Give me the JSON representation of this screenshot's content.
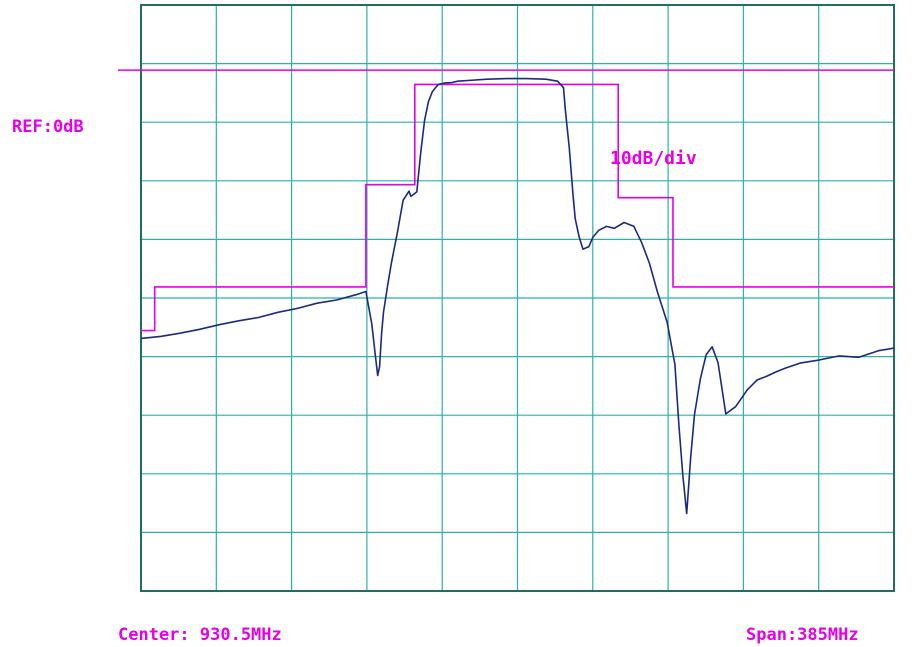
{
  "labels": {
    "ref": "REF:0dB",
    "scale": "10dB/div",
    "center": "Center: 930.5MHz",
    "span": "Span:385MHz"
  },
  "colors": {
    "grid": "#2ab3a8",
    "frame": "#1f6f60",
    "trace": "#1a2a80",
    "mask": "#e600e6",
    "text": "#e600e6"
  },
  "chart_data": {
    "type": "line",
    "title": "",
    "xlabel": "",
    "ylabel": "",
    "center_mhz": 930.5,
    "span_mhz": 385,
    "xlim": [
      738.0,
      1123.0
    ],
    "ylim": [
      -80,
      10
    ],
    "ref_level_db": 0,
    "db_per_div": 10,
    "grid": true,
    "series": [
      {
        "kind": "response",
        "x": [
          738.0,
          748.0,
          758.0,
          768.0,
          778.0,
          788.0,
          798.0,
          808.0,
          818.0,
          828.0,
          838.0,
          848.0,
          853.0,
          856.0,
          858.0,
          859.0,
          860.0,
          861.0,
          862.0,
          864.0,
          866.0,
          869.0,
          872.0,
          875.0,
          876.0,
          879.0,
          881.0,
          883.0,
          885.0,
          887.0,
          890.0,
          893.0,
          897.0,
          900.0,
          905.0,
          915.0,
          925.0,
          935.0,
          945.0,
          951.0,
          954.0,
          955.0,
          957.0,
          959.0,
          960.0,
          962.0,
          964.0,
          967.0,
          969.0,
          972.0,
          976.0,
          980.0,
          985.0,
          990.0,
          994.0,
          998.0,
          1002.0,
          1007.0,
          1011.0,
          1013.0,
          1015.0,
          1017.0,
          1019.0,
          1021.0,
          1024.0,
          1027.0,
          1030.0,
          1033.0,
          1037.0,
          1042.0,
          1048.0,
          1053.0,
          1058.0,
          1063.0,
          1068.0,
          1075.0,
          1085.0,
          1095.0,
          1105.0,
          1115.0,
          1123.0
        ],
        "y": [
          -41.2,
          -40.9,
          -40.4,
          -39.8,
          -39.1,
          -38.5,
          -38.0,
          -37.2,
          -36.6,
          -35.8,
          -35.3,
          -34.5,
          -34.0,
          -39.0,
          -44.3,
          -46.9,
          -45.5,
          -40.4,
          -37.2,
          -33.3,
          -29.7,
          -25.1,
          -20.0,
          -18.6,
          -19.4,
          -18.7,
          -12.7,
          -7.7,
          -4.8,
          -3.3,
          -2.2,
          -2.0,
          -1.9,
          -1.7,
          -1.6,
          -1.4,
          -1.3,
          -1.3,
          -1.4,
          -1.7,
          -2.7,
          -6.2,
          -12.0,
          -19.5,
          -22.8,
          -25.6,
          -27.5,
          -27.1,
          -25.7,
          -24.6,
          -24.0,
          -24.3,
          -23.4,
          -24.0,
          -26.5,
          -29.7,
          -34.0,
          -38.7,
          -45.2,
          -54.5,
          -62.2,
          -68.1,
          -59.6,
          -52.9,
          -47.4,
          -43.7,
          -42.5,
          -44.9,
          -52.8,
          -51.7,
          -49.1,
          -47.6,
          -47.0,
          -46.3,
          -45.7,
          -45.0,
          -44.5,
          -43.9,
          -44.1,
          -43.1,
          -42.7
        ]
      },
      {
        "kind": "mask",
        "x": [
          738.0,
          745.0,
          745.0,
          853.0,
          853.0,
          878.0,
          878.0,
          982.0,
          982.0,
          1010.0,
          1010.0,
          1123.0
        ],
        "y": [
          -40.0,
          -40.0,
          -33.3,
          -33.3,
          -17.6,
          -17.6,
          -2.2,
          -2.2,
          -19.6,
          -19.6,
          -33.3,
          -33.3
        ]
      }
    ]
  }
}
